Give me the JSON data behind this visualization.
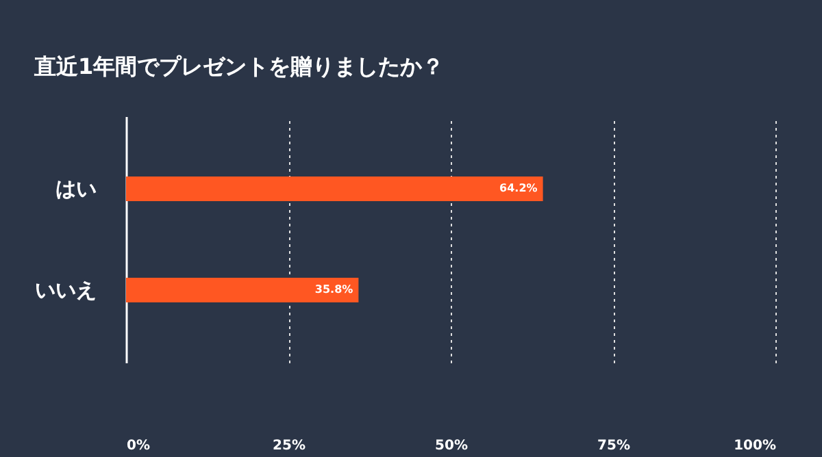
{
  "chart_data": {
    "type": "bar",
    "orientation": "horizontal",
    "title": "直近1年間でプレゼントを贈りましたか？",
    "categories": [
      "はい",
      "いいえ"
    ],
    "values": [
      64.2,
      35.8
    ],
    "color": "#ff5722",
    "value_labels": [
      "64.2%",
      "35.8%"
    ],
    "xlim": [
      0,
      100
    ],
    "xticks": [
      {
        "value": 0,
        "label": "0%"
      },
      {
        "value": 25,
        "label": "25%"
      },
      {
        "value": 50,
        "label": "50%"
      },
      {
        "value": 75,
        "label": "75%"
      },
      {
        "value": 100,
        "label": "100%"
      }
    ],
    "grid": "x",
    "line_style": "dotted"
  }
}
